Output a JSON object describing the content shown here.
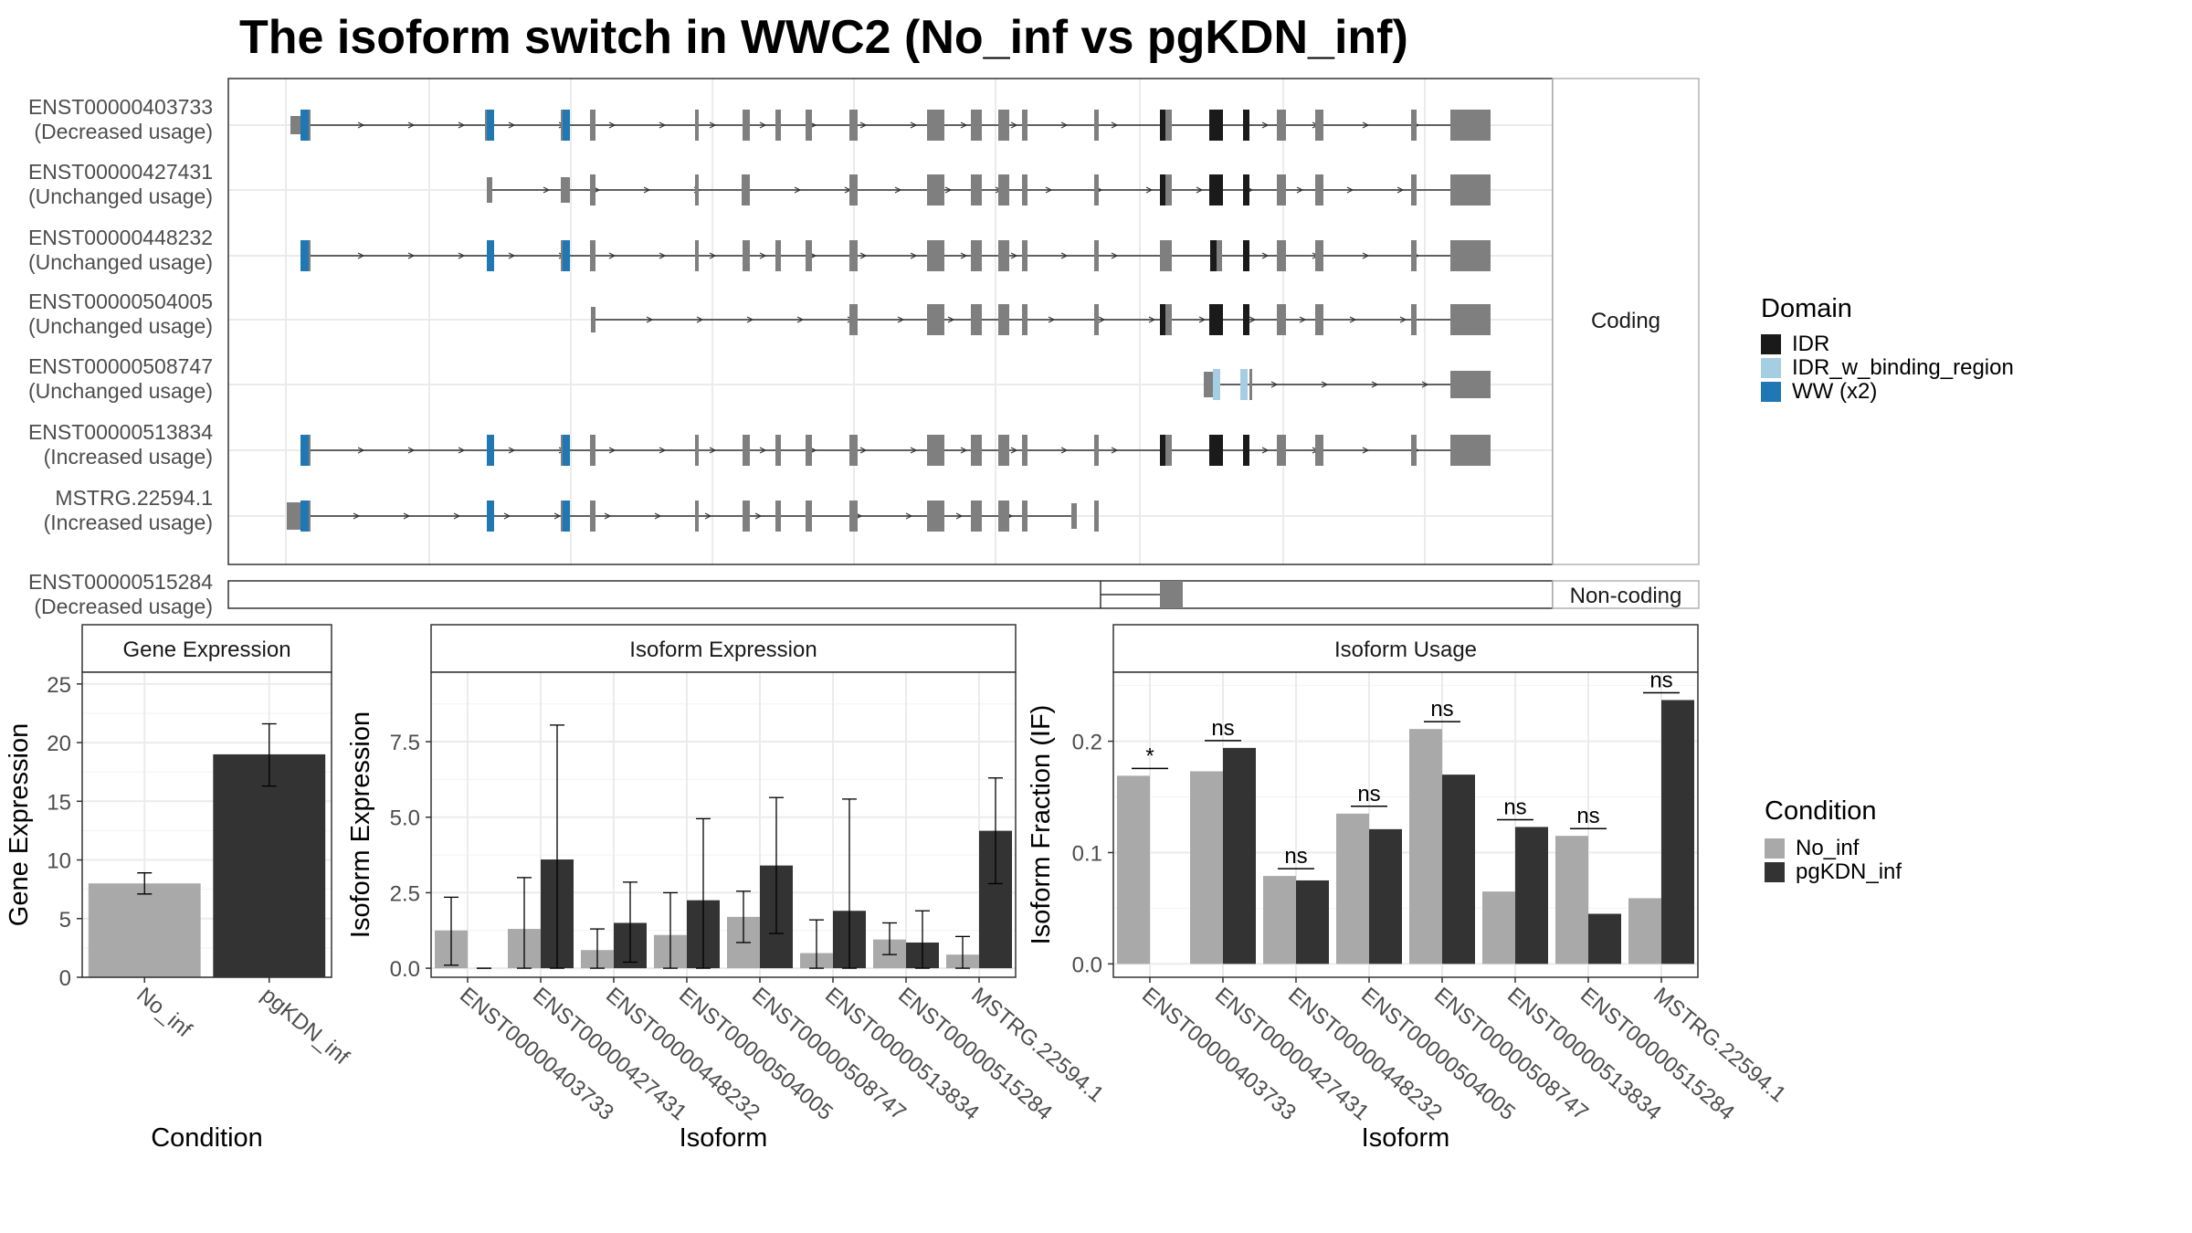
{
  "title": "The isoform switch in WWC2 (No_inf vs pgKDN_inf)",
  "colors": {
    "exon": "#7f7f7f",
    "IDR": "#1a1a1a",
    "IDR_w_binding_region": "#a6cee3",
    "WW (x2)": "#1f78b4",
    "No_inf": "#a9a9a9",
    "pgKDN_inf": "#333333"
  },
  "structure": {
    "coding_label": "Coding",
    "noncoding_label": "Non-coding",
    "legend_title": "Domain",
    "legend_items": [
      "IDR",
      "IDR_w_binding_region",
      "WW (x2)"
    ],
    "gene_start": 0,
    "gene_end": 100,
    "coding": [
      {
        "id": "ENST00000403733",
        "usage": "(Decreased usage)",
        "exons": [
          [
            0.5,
            1.5,
            "t"
          ],
          [
            1.5,
            2.5,
            "c"
          ],
          [
            17,
            17.8,
            "c"
          ],
          [
            23.5,
            24.5,
            "c"
          ],
          [
            25.5,
            26,
            "c"
          ],
          [
            34,
            34.5,
            "c"
          ],
          [
            38.5,
            39,
            "c"
          ],
          [
            43,
            43.5,
            "c"
          ],
          [
            47,
            47.5,
            "c"
          ],
          [
            52,
            52.5,
            "c"
          ],
          [
            56,
            57.5,
            "c"
          ],
          [
            63,
            64.5,
            "c"
          ],
          [
            67,
            68,
            "c"
          ],
          [
            74,
            74.5,
            "c"
          ],
          [
            73.3,
            73.8,
            "c"
          ],
          [
            81,
            81.5,
            "c"
          ],
          [
            81.5,
            82.2,
            "c"
          ],
          [
            86,
            87,
            "c"
          ],
          [
            87,
            88.5,
            "c"
          ],
          [
            84,
            85,
            "c"
          ],
          [
            92,
            92.5,
            "c"
          ],
          [
            104,
            105,
            "c"
          ],
          [
            108,
            109,
            "c"
          ]
        ],
        "dom": [
          [
            1.3,
            2.3,
            "WW (x2)"
          ],
          [
            17.1,
            17.7,
            "WW (x2)"
          ],
          [
            23.7,
            24.3,
            "WW (x2)"
          ]
        ]
      },
      {
        "id": "ENST00000427431",
        "usage": "(Unchanged usage)",
        "exons": [],
        "dom": []
      },
      {
        "id": "ENST00000448232",
        "usage": "(Unchanged usage)",
        "exons": [],
        "dom": []
      },
      {
        "id": "ENST00000504005",
        "usage": "(Unchanged usage)",
        "exons": [],
        "dom": []
      },
      {
        "id": "ENST00000508747",
        "usage": "(Unchanged usage)",
        "exons": [],
        "dom": []
      },
      {
        "id": "ENST00000513834",
        "usage": "(Increased usage)",
        "exons": [],
        "dom": []
      },
      {
        "id": "MSTRG.22594.1",
        "usage": "(Increased usage)",
        "exons": [],
        "dom": []
      }
    ],
    "noncoding": [
      {
        "id": "ENST00000515284",
        "usage": "(Decreased usage)"
      }
    ]
  },
  "chart_data": [
    {
      "type": "bar",
      "title": "Gene Expression",
      "xlabel": "Condition",
      "ylabel": "Gene Expression",
      "ylim": [
        0,
        26
      ],
      "yticks": [
        0,
        5,
        10,
        15,
        20,
        25
      ],
      "categories": [
        "No_inf",
        "pgKDN_inf"
      ],
      "values": [
        8.0,
        19.0
      ],
      "err": [
        [
          7.1,
          8.9
        ],
        [
          16.3,
          21.6
        ]
      ]
    },
    {
      "type": "bar",
      "title": "Isoform Expression",
      "xlabel": "Isoform",
      "ylabel": "Isoform Expression",
      "ylim": [
        -0.3,
        9.8
      ],
      "yticks": [
        0.0,
        2.5,
        5.0,
        7.5
      ],
      "yticklabels": [
        "0.0",
        "2.5",
        "5.0",
        "7.5"
      ],
      "categories": [
        "ENST00000403733",
        "ENST00000427431",
        "ENST00000448232",
        "ENST00000504005",
        "ENST00000508747",
        "ENST00000513834",
        "ENST00000515284",
        "MSTRG.22594.1"
      ],
      "series": [
        {
          "name": "No_inf",
          "values": [
            1.25,
            1.3,
            0.6,
            1.1,
            1.7,
            0.5,
            0.95,
            0.45
          ],
          "err": [
            [
              0.1,
              2.35
            ],
            [
              0.0,
              3.0
            ],
            [
              0.0,
              1.3
            ],
            [
              0.0,
              2.5
            ],
            [
              0.85,
              2.55
            ],
            [
              0.0,
              1.6
            ],
            [
              0.45,
              1.5
            ],
            [
              0.0,
              1.05
            ]
          ]
        },
        {
          "name": "pgKDN_inf",
          "values": [
            0.0,
            3.6,
            1.5,
            2.25,
            3.4,
            1.9,
            0.85,
            4.55
          ],
          "err": [
            [
              0.0,
              0.0
            ],
            [
              0.0,
              8.05
            ],
            [
              0.2,
              2.85
            ],
            [
              0.0,
              4.95
            ],
            [
              1.15,
              5.65
            ],
            [
              0.0,
              5.6
            ],
            [
              0.0,
              1.9
            ],
            [
              2.8,
              6.3
            ]
          ]
        }
      ]
    },
    {
      "type": "bar",
      "title": "Isoform Usage",
      "xlabel": "Isoform",
      "ylabel": "Isoform Fraction (IF)",
      "ylim": [
        -0.012,
        0.262
      ],
      "yticks": [
        0.0,
        0.1,
        0.2
      ],
      "yticklabels": [
        "0.0",
        "0.1",
        "0.2"
      ],
      "categories": [
        "ENST00000403733",
        "ENST00000427431",
        "ENST00000448232",
        "ENST00000504005",
        "ENST00000508747",
        "ENST00000513834",
        "ENST00000515284",
        "MSTRG.22594.1"
      ],
      "series": [
        {
          "name": "No_inf",
          "values": [
            0.169,
            0.173,
            0.079,
            0.135,
            0.211,
            0.065,
            0.115,
            0.059
          ]
        },
        {
          "name": "pgKDN_inf",
          "values": [
            0.0,
            0.194,
            0.075,
            0.121,
            0.17,
            0.123,
            0.045,
            0.237
          ]
        }
      ],
      "significance": [
        "*",
        "ns",
        "ns",
        "ns",
        "ns",
        "ns",
        "ns",
        "ns"
      ]
    }
  ],
  "condition_legend": {
    "title": "Condition",
    "items": [
      "No_inf",
      "pgKDN_inf"
    ]
  }
}
